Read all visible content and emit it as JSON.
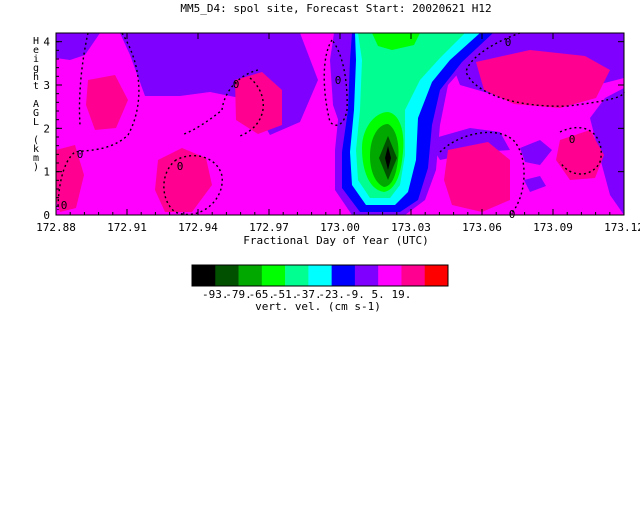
{
  "title": "MM5_D4: spol site,  Forecast Start: 20020621 H12",
  "chart_data": {
    "type": "heatmap",
    "title": "MM5_D4: spol site,  Forecast Start: 20020621 H12",
    "xlabel": "Fractional Day of Year (UTC)",
    "ylabel": "Height AGL (km)",
    "xlim": [
      172.88,
      173.12
    ],
    "ylim": [
      0,
      4.2
    ],
    "x_ticks": [
      "172.88",
      "172.91",
      "172.94",
      "172.97",
      "173.00",
      "173.03",
      "173.06",
      "173.09",
      "173.12"
    ],
    "y_ticks": [
      "0",
      "1",
      "2",
      "3",
      "4"
    ],
    "contour_label": "0",
    "colorbar": {
      "label": "vert. vel. (cm s-1)",
      "tick_labels": [
        "-93.",
        "-79.",
        "-65.",
        "-51.",
        "-37.",
        "-23.",
        "-9.",
        "5.",
        "19."
      ],
      "colors": [
        "#000000",
        "#005000",
        "#00a800",
        "#00ff00",
        "#00ff90",
        "#00ffff",
        "#0000ff",
        "#8000ff",
        "#ff00ff",
        "#ff0090",
        "#ff0000"
      ]
    },
    "background_value": 5
  }
}
